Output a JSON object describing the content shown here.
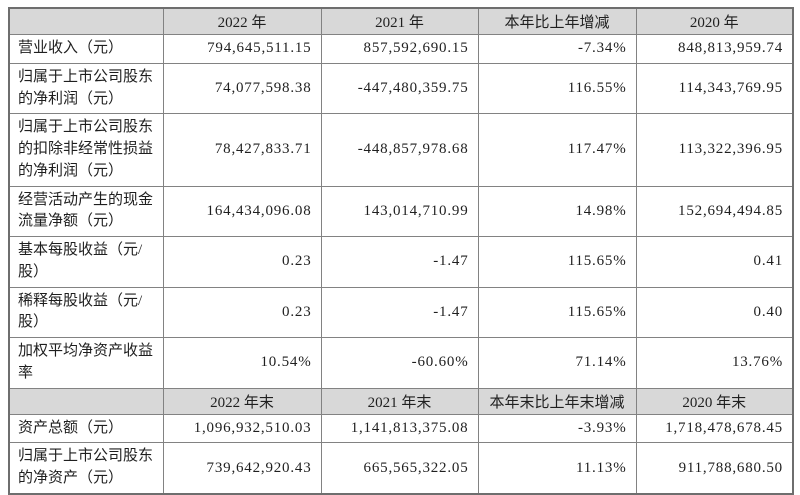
{
  "colors": {
    "header_bg": "#d8d8d8",
    "grid_border": "#828282",
    "outer_border": "#6e6e6e",
    "text": "#1f1f1f"
  },
  "table": {
    "annual_header": [
      "2022 年",
      "2021 年",
      "本年比上年增减",
      "2020 年"
    ],
    "annual_rows": [
      {
        "label": "营业收入（元）",
        "y2022": "794,645,511.15",
        "y2021": "857,592,690.15",
        "change": "-7.34%",
        "y2020": "848,813,959.74"
      },
      {
        "label": "归属于上市公司股东的净利润（元）",
        "y2022": "74,077,598.38",
        "y2021": "-447,480,359.75",
        "change": "116.55%",
        "y2020": "114,343,769.95"
      },
      {
        "label": "归属于上市公司股东的扣除非经常性损益的净利润（元）",
        "y2022": "78,427,833.71",
        "y2021": "-448,857,978.68",
        "change": "117.47%",
        "y2020": "113,322,396.95"
      },
      {
        "label": "经营活动产生的现金流量净额（元）",
        "y2022": "164,434,096.08",
        "y2021": "143,014,710.99",
        "change": "14.98%",
        "y2020": "152,694,494.85"
      },
      {
        "label": "基本每股收益（元/股）",
        "y2022": "0.23",
        "y2021": "-1.47",
        "change": "115.65%",
        "y2020": "0.41"
      },
      {
        "label": "稀释每股收益（元/股）",
        "y2022": "0.23",
        "y2021": "-1.47",
        "change": "115.65%",
        "y2020": "0.40"
      },
      {
        "label": "加权平均净资产收益率",
        "y2022": "10.54%",
        "y2021": "-60.60%",
        "change": "71.14%",
        "y2020": "13.76%"
      }
    ],
    "eoy_header": [
      "2022 年末",
      "2021 年末",
      "本年末比上年末增减",
      "2020 年末"
    ],
    "eoy_rows": [
      {
        "label": "资产总额（元）",
        "y2022": "1,096,932,510.03",
        "y2021": "1,141,813,375.08",
        "change": "-3.93%",
        "y2020": "1,718,478,678.45"
      },
      {
        "label": "归属于上市公司股东的净资产（元）",
        "y2022": "739,642,920.43",
        "y2021": "665,565,322.05",
        "change": "11.13%",
        "y2020": "911,788,680.50"
      }
    ]
  }
}
